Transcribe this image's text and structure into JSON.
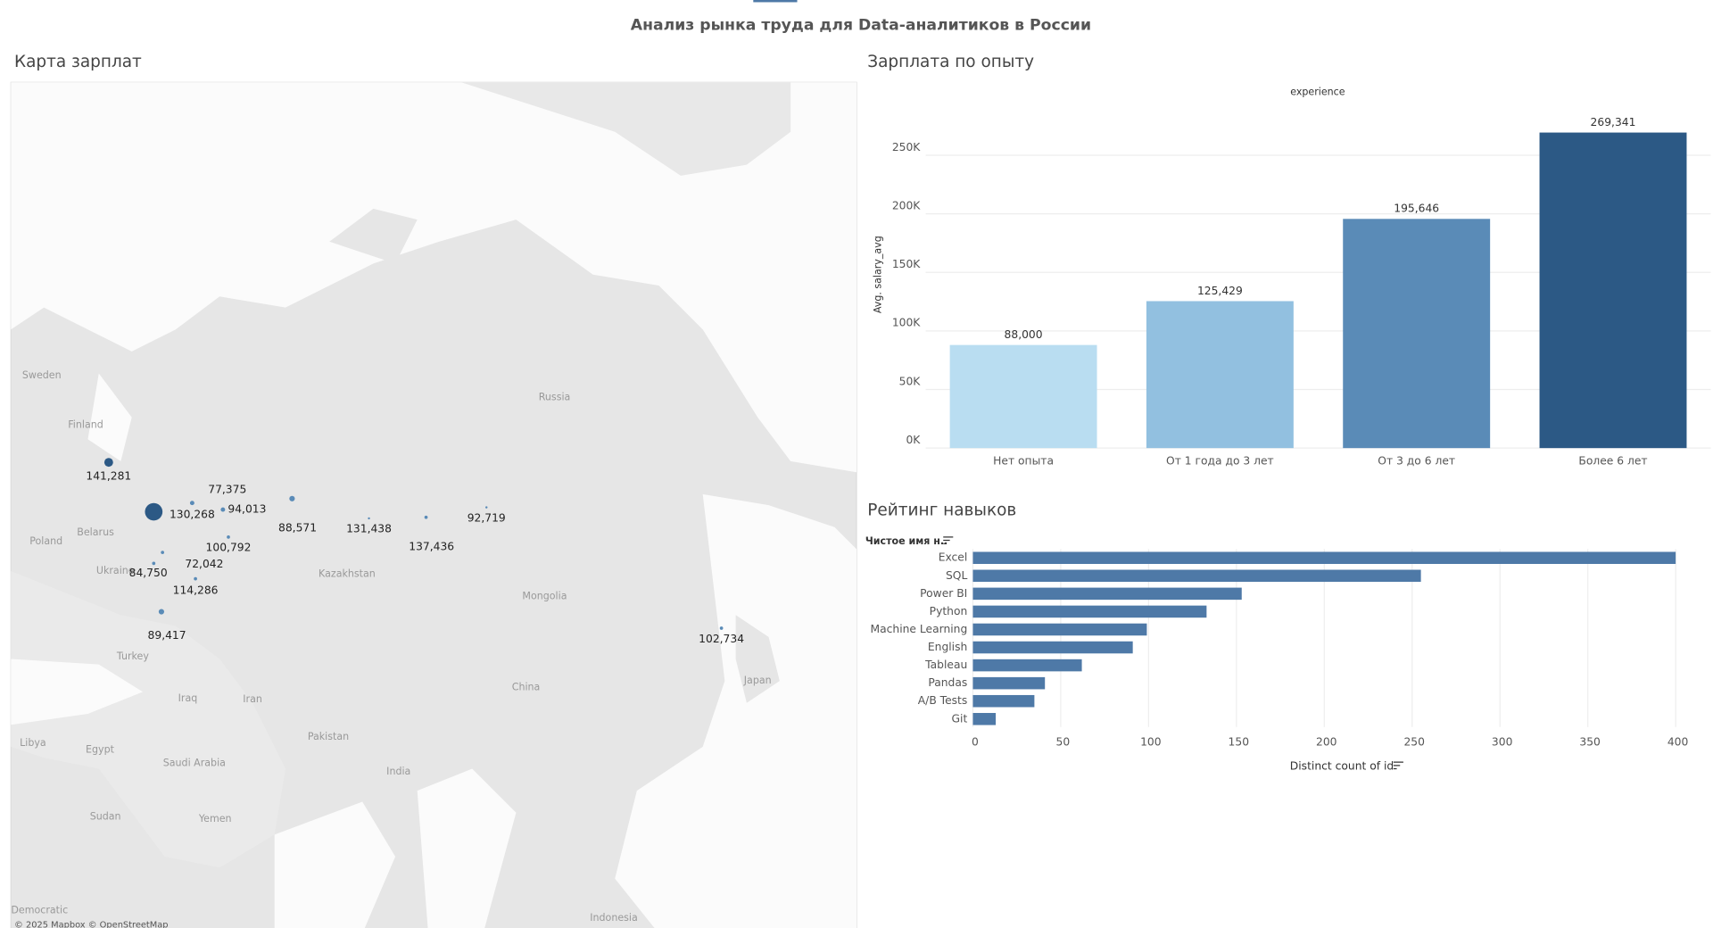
{
  "title": "Анализ рынка труда для Data-аналитиков в России",
  "chart_data": [
    {
      "type": "map",
      "title": "Карта зарплат",
      "place_names": [
        "Sweden",
        "Finland",
        "Russia",
        "Poland",
        "Belarus",
        "Ukraine",
        "Kazakhstan",
        "Mongolia",
        "Turkey",
        "Iraq",
        "Iran",
        "Pakistan",
        "China",
        "Japan",
        "Libya",
        "Egypt",
        "Saudi Arabia",
        "India",
        "Sudan",
        "Yemen",
        "Democratic",
        "Indonesia"
      ],
      "values": [
        141281,
        130268,
        77375,
        94013,
        100792,
        72042,
        84750,
        114286,
        89417,
        88571,
        131438,
        137436,
        92719,
        102734
      ],
      "value_labels": [
        "141,281",
        "130,268",
        "77,375",
        "94,013",
        "100,792",
        "72,042",
        "84,750",
        "114,286",
        "89,417",
        "88,571",
        "131,438",
        "137,436",
        "92,719",
        "102,734"
      ],
      "color": "#2c5985",
      "attribution": "© 2025 Mapbox © OpenStreetMap"
    },
    {
      "type": "bar",
      "title": "Зарплата по опыту",
      "header": "experience",
      "ylabel": "Avg. salary_avg",
      "categories": [
        "Нет опыта",
        "От 1 года до 3 лет",
        "От 3 до 6 лет",
        "Более 6 лет"
      ],
      "values": [
        88000,
        125429,
        195646,
        269341
      ],
      "value_labels": [
        "88,000",
        "125,429",
        "195,646",
        "269,341"
      ],
      "colors": [
        "#b9ddf1",
        "#92c0e0",
        "#5a8bb7",
        "#2c5985"
      ],
      "ylim": [
        0,
        300000
      ],
      "yticks": [
        {
          "value": 0,
          "label": "0K"
        },
        {
          "value": 50000,
          "label": "50K"
        },
        {
          "value": 100000,
          "label": "100K"
        },
        {
          "value": 150000,
          "label": "150K"
        },
        {
          "value": 200000,
          "label": "200K"
        },
        {
          "value": 250000,
          "label": "250K"
        }
      ],
      "grid": true
    },
    {
      "type": "hbar",
      "title": "Рейтинг навыков",
      "header": "Чистое имя н..",
      "xlabel": "Distinct count of id",
      "categories": [
        "Excel",
        "SQL",
        "Power BI",
        "Python",
        "Machine Learning",
        "English",
        "Tableau",
        "Pandas",
        "A/B Tests",
        "Git"
      ],
      "values": [
        400,
        255,
        153,
        133,
        99,
        91,
        62,
        41,
        35,
        13
      ],
      "color": "#4e79a7",
      "xlim": [
        0,
        420
      ],
      "xticks": [
        0,
        50,
        100,
        150,
        200,
        250,
        300,
        350,
        400
      ],
      "grid": true
    }
  ]
}
